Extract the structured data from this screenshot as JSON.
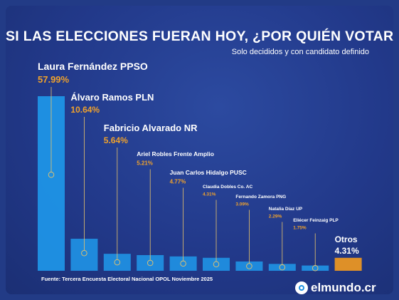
{
  "header": {
    "title": "SI LAS ELECCIONES FUERAN HOY, ¿POR QUIÉN VOTARÍA?",
    "subtitle": "Solo decididos y con candidato definido"
  },
  "footer": {
    "source": "Fuente: Tercera Encuesta Electoral Nacional OPOL Noviembre 2025",
    "logo_text": "elmundo.cr"
  },
  "colors": {
    "bar_blue": "#1f93e6",
    "bar_orange": "#f39a1e",
    "value_orange": "#f0a22c",
    "label_white": "#ffffff",
    "pin_yellow": "#e9c46a"
  },
  "chart_data": {
    "type": "bar",
    "title": "SI LAS ELECCIONES FUERAN HOY, ¿POR QUIÉN VOTARÍA?",
    "subtitle": "Solo decididos y con candidato definido",
    "categories": [
      "Laura Fernández PPSO",
      "Álvaro Ramos PLN",
      "Fabricio Alvarado NR",
      "Ariel Robles Frente Amplio",
      "Juan Carlos Hidalgo PUSC",
      "Claudia Dobles Co. AC",
      "Fernando Zamora PNG",
      "Natalia Díaz UP",
      "Eliécer Feinzaig PLP",
      "Otros"
    ],
    "values": [
      57.99,
      10.64,
      5.64,
      5.21,
      4.77,
      4.31,
      3.09,
      2.29,
      1.75,
      4.31
    ],
    "value_labels": [
      "57.99%",
      "10.64%",
      "5.64%",
      "5.21%",
      "4.77%",
      "4.31%",
      "3.09%",
      "2.29%",
      "1.75%",
      "4.31%"
    ],
    "highlight": [
      false,
      false,
      false,
      false,
      false,
      false,
      false,
      false,
      false,
      true
    ],
    "xlabel": "",
    "ylabel": "",
    "grid": false,
    "legend": "none"
  }
}
